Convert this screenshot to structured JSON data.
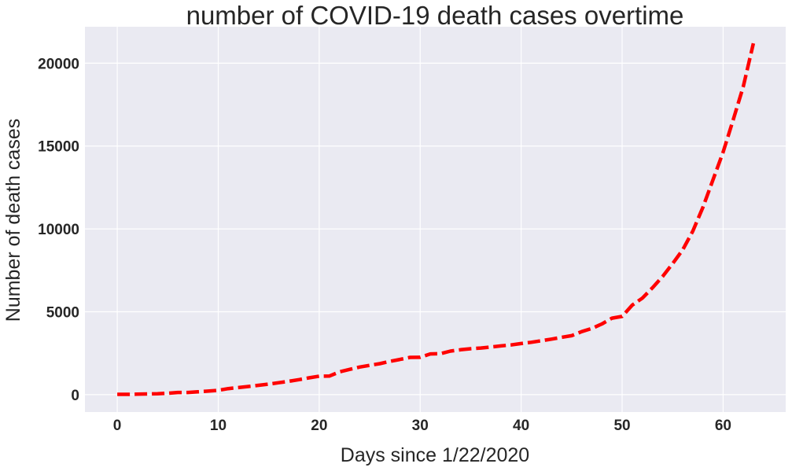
{
  "chart_data": {
    "type": "line",
    "title": "number of COVID-19 death cases overtime",
    "xlabel": "Days since 1/22/2020",
    "ylabel": "Number of death cases",
    "xlim": [
      -3.2,
      66.2
    ],
    "ylim": [
      -1050,
      22200
    ],
    "xticks": [
      0,
      10,
      20,
      30,
      40,
      50,
      60
    ],
    "yticks": [
      0,
      5000,
      10000,
      15000,
      20000
    ],
    "grid": true,
    "background": "#eaeaf2",
    "grid_color": "#ffffff",
    "series": [
      {
        "color": "#ff0000",
        "line_style": "dashed",
        "x": [
          0,
          1,
          2,
          3,
          4,
          5,
          6,
          7,
          8,
          9,
          10,
          11,
          12,
          13,
          14,
          15,
          16,
          17,
          18,
          19,
          20,
          21,
          22,
          23,
          24,
          25,
          26,
          27,
          28,
          29,
          30,
          31,
          32,
          33,
          34,
          35,
          36,
          37,
          38,
          39,
          40,
          41,
          42,
          43,
          44,
          45,
          46,
          47,
          48,
          49,
          50,
          51,
          52,
          53,
          54,
          55,
          56,
          57,
          58,
          59,
          60,
          61,
          62,
          63
        ],
        "y": [
          17,
          18,
          26,
          42,
          56,
          82,
          131,
          133,
          171,
          213,
          259,
          362,
          426,
          492,
          564,
          634,
          719,
          806,
          906,
          1013,
          1113,
          1118,
          1371,
          1523,
          1666,
          1770,
          1868,
          2007,
          2122,
          2247,
          2251,
          2458,
          2469,
          2629,
          2708,
          2770,
          2814,
          2872,
          2941,
          2996,
          3085,
          3160,
          3254,
          3348,
          3460,
          3558,
          3803,
          3996,
          4262,
          4615,
          4720,
          5404,
          5819,
          6440,
          7126,
          7905,
          8733,
          9867,
          11299,
          12973,
          14632,
          16576,
          18600,
          21200
        ]
      }
    ]
  }
}
